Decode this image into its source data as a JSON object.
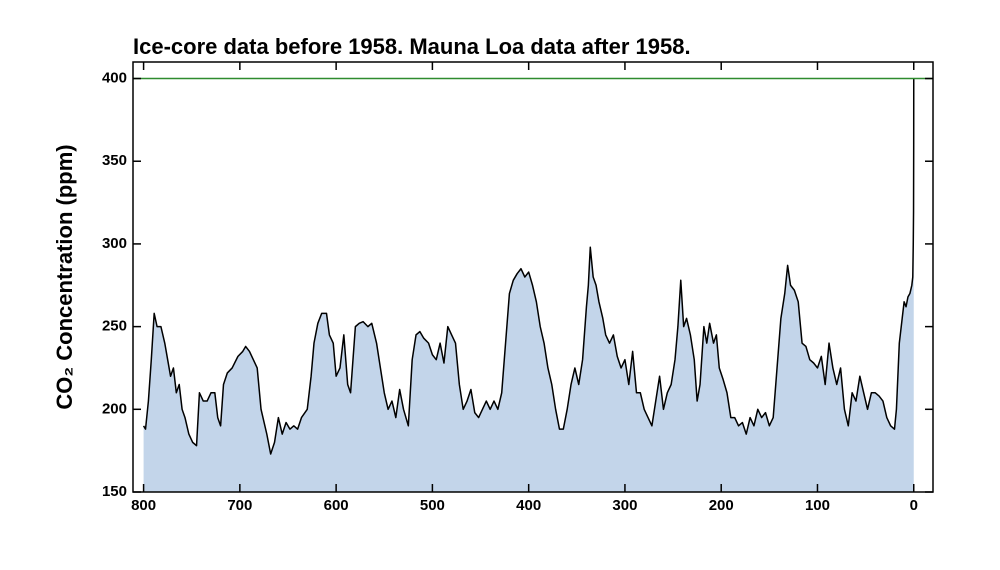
{
  "chart_data": {
    "type": "area",
    "title": "Ice-core data before 1958. Mauna Loa data after 1958.",
    "ylabel": "CO₂ Concentration (ppm)",
    "xlim": [
      811,
      -20
    ],
    "ylim": [
      150,
      410
    ],
    "xticks": [
      800,
      700,
      600,
      500,
      400,
      300,
      200,
      100,
      0
    ],
    "yticks": [
      150,
      200,
      250,
      300,
      350,
      400
    ],
    "reference_line": {
      "value": 400,
      "color": "#2e8b2e"
    },
    "line_color": "#000000",
    "fill_color": "#c3d5ea",
    "x": [
      800,
      798,
      795,
      792,
      789,
      786,
      782,
      778,
      775,
      772,
      769,
      766,
      763,
      760,
      757,
      753,
      749,
      745,
      742,
      738,
      734,
      730,
      726,
      723,
      720,
      717,
      713,
      708,
      702,
      697,
      694,
      690,
      686,
      682,
      678,
      672,
      668,
      664,
      660,
      656,
      652,
      648,
      644,
      640,
      636,
      630,
      626,
      623,
      619,
      615,
      610,
      607,
      603,
      600,
      596,
      592,
      588,
      585,
      580,
      576,
      572,
      567,
      563,
      558,
      554,
      550,
      546,
      542,
      538,
      534,
      530,
      525,
      521,
      517,
      513,
      509,
      504,
      500,
      496,
      492,
      488,
      484,
      480,
      476,
      472,
      468,
      464,
      460,
      456,
      452,
      448,
      444,
      440,
      436,
      432,
      428,
      424,
      420,
      416,
      412,
      408,
      404,
      400,
      396,
      392,
      388,
      384,
      380,
      376,
      372,
      368,
      364,
      360,
      356,
      352,
      348,
      344,
      340,
      338,
      336,
      333,
      330,
      327,
      323,
      320,
      316,
      312,
      308,
      304,
      300,
      296,
      292,
      288,
      284,
      280,
      276,
      272,
      268,
      264,
      260,
      256,
      252,
      248,
      245,
      242,
      239,
      236,
      232,
      228,
      225,
      222,
      218,
      215,
      212,
      208,
      205,
      202,
      198,
      194,
      190,
      186,
      182,
      178,
      174,
      170,
      166,
      162,
      158,
      154,
      150,
      146,
      142,
      138,
      134,
      131,
      128,
      124,
      120,
      116,
      112,
      108,
      104,
      100,
      96,
      92,
      88,
      84,
      80,
      76,
      72,
      68,
      64,
      60,
      56,
      52,
      48,
      44,
      40,
      36,
      32,
      28,
      24,
      20,
      18,
      15,
      12,
      10,
      8,
      6,
      4,
      2,
      1,
      0.5,
      0.2,
      0.05,
      0
    ],
    "values": [
      190,
      188,
      205,
      230,
      258,
      250,
      250,
      240,
      230,
      220,
      225,
      210,
      215,
      200,
      195,
      185,
      180,
      178,
      210,
      205,
      205,
      210,
      210,
      195,
      190,
      215,
      222,
      225,
      232,
      235,
      238,
      235,
      230,
      225,
      200,
      185,
      173,
      180,
      195,
      185,
      192,
      188,
      190,
      188,
      195,
      200,
      220,
      240,
      252,
      258,
      258,
      245,
      240,
      220,
      225,
      245,
      215,
      210,
      250,
      252,
      253,
      250,
      252,
      240,
      225,
      210,
      200,
      205,
      195,
      212,
      200,
      190,
      230,
      245,
      247,
      243,
      240,
      233,
      230,
      240,
      228,
      250,
      245,
      240,
      215,
      200,
      205,
      212,
      198,
      195,
      200,
      205,
      200,
      205,
      200,
      210,
      240,
      270,
      278,
      282,
      285,
      280,
      283,
      275,
      265,
      250,
      240,
      225,
      215,
      200,
      188,
      188,
      200,
      215,
      225,
      215,
      230,
      262,
      275,
      298,
      280,
      275,
      265,
      255,
      245,
      240,
      245,
      232,
      225,
      230,
      215,
      235,
      210,
      210,
      200,
      195,
      190,
      205,
      220,
      200,
      210,
      215,
      230,
      250,
      278,
      250,
      255,
      245,
      230,
      205,
      215,
      250,
      240,
      252,
      240,
      245,
      225,
      218,
      210,
      195,
      195,
      190,
      192,
      185,
      195,
      190,
      200,
      195,
      198,
      190,
      195,
      225,
      255,
      270,
      287,
      275,
      272,
      265,
      240,
      238,
      230,
      228,
      225,
      232,
      215,
      240,
      225,
      215,
      225,
      200,
      190,
      210,
      205,
      220,
      210,
      200,
      210,
      210,
      208,
      205,
      195,
      190,
      188,
      200,
      240,
      255,
      265,
      262,
      268,
      270,
      275,
      280,
      300,
      320,
      360,
      400
    ]
  }
}
